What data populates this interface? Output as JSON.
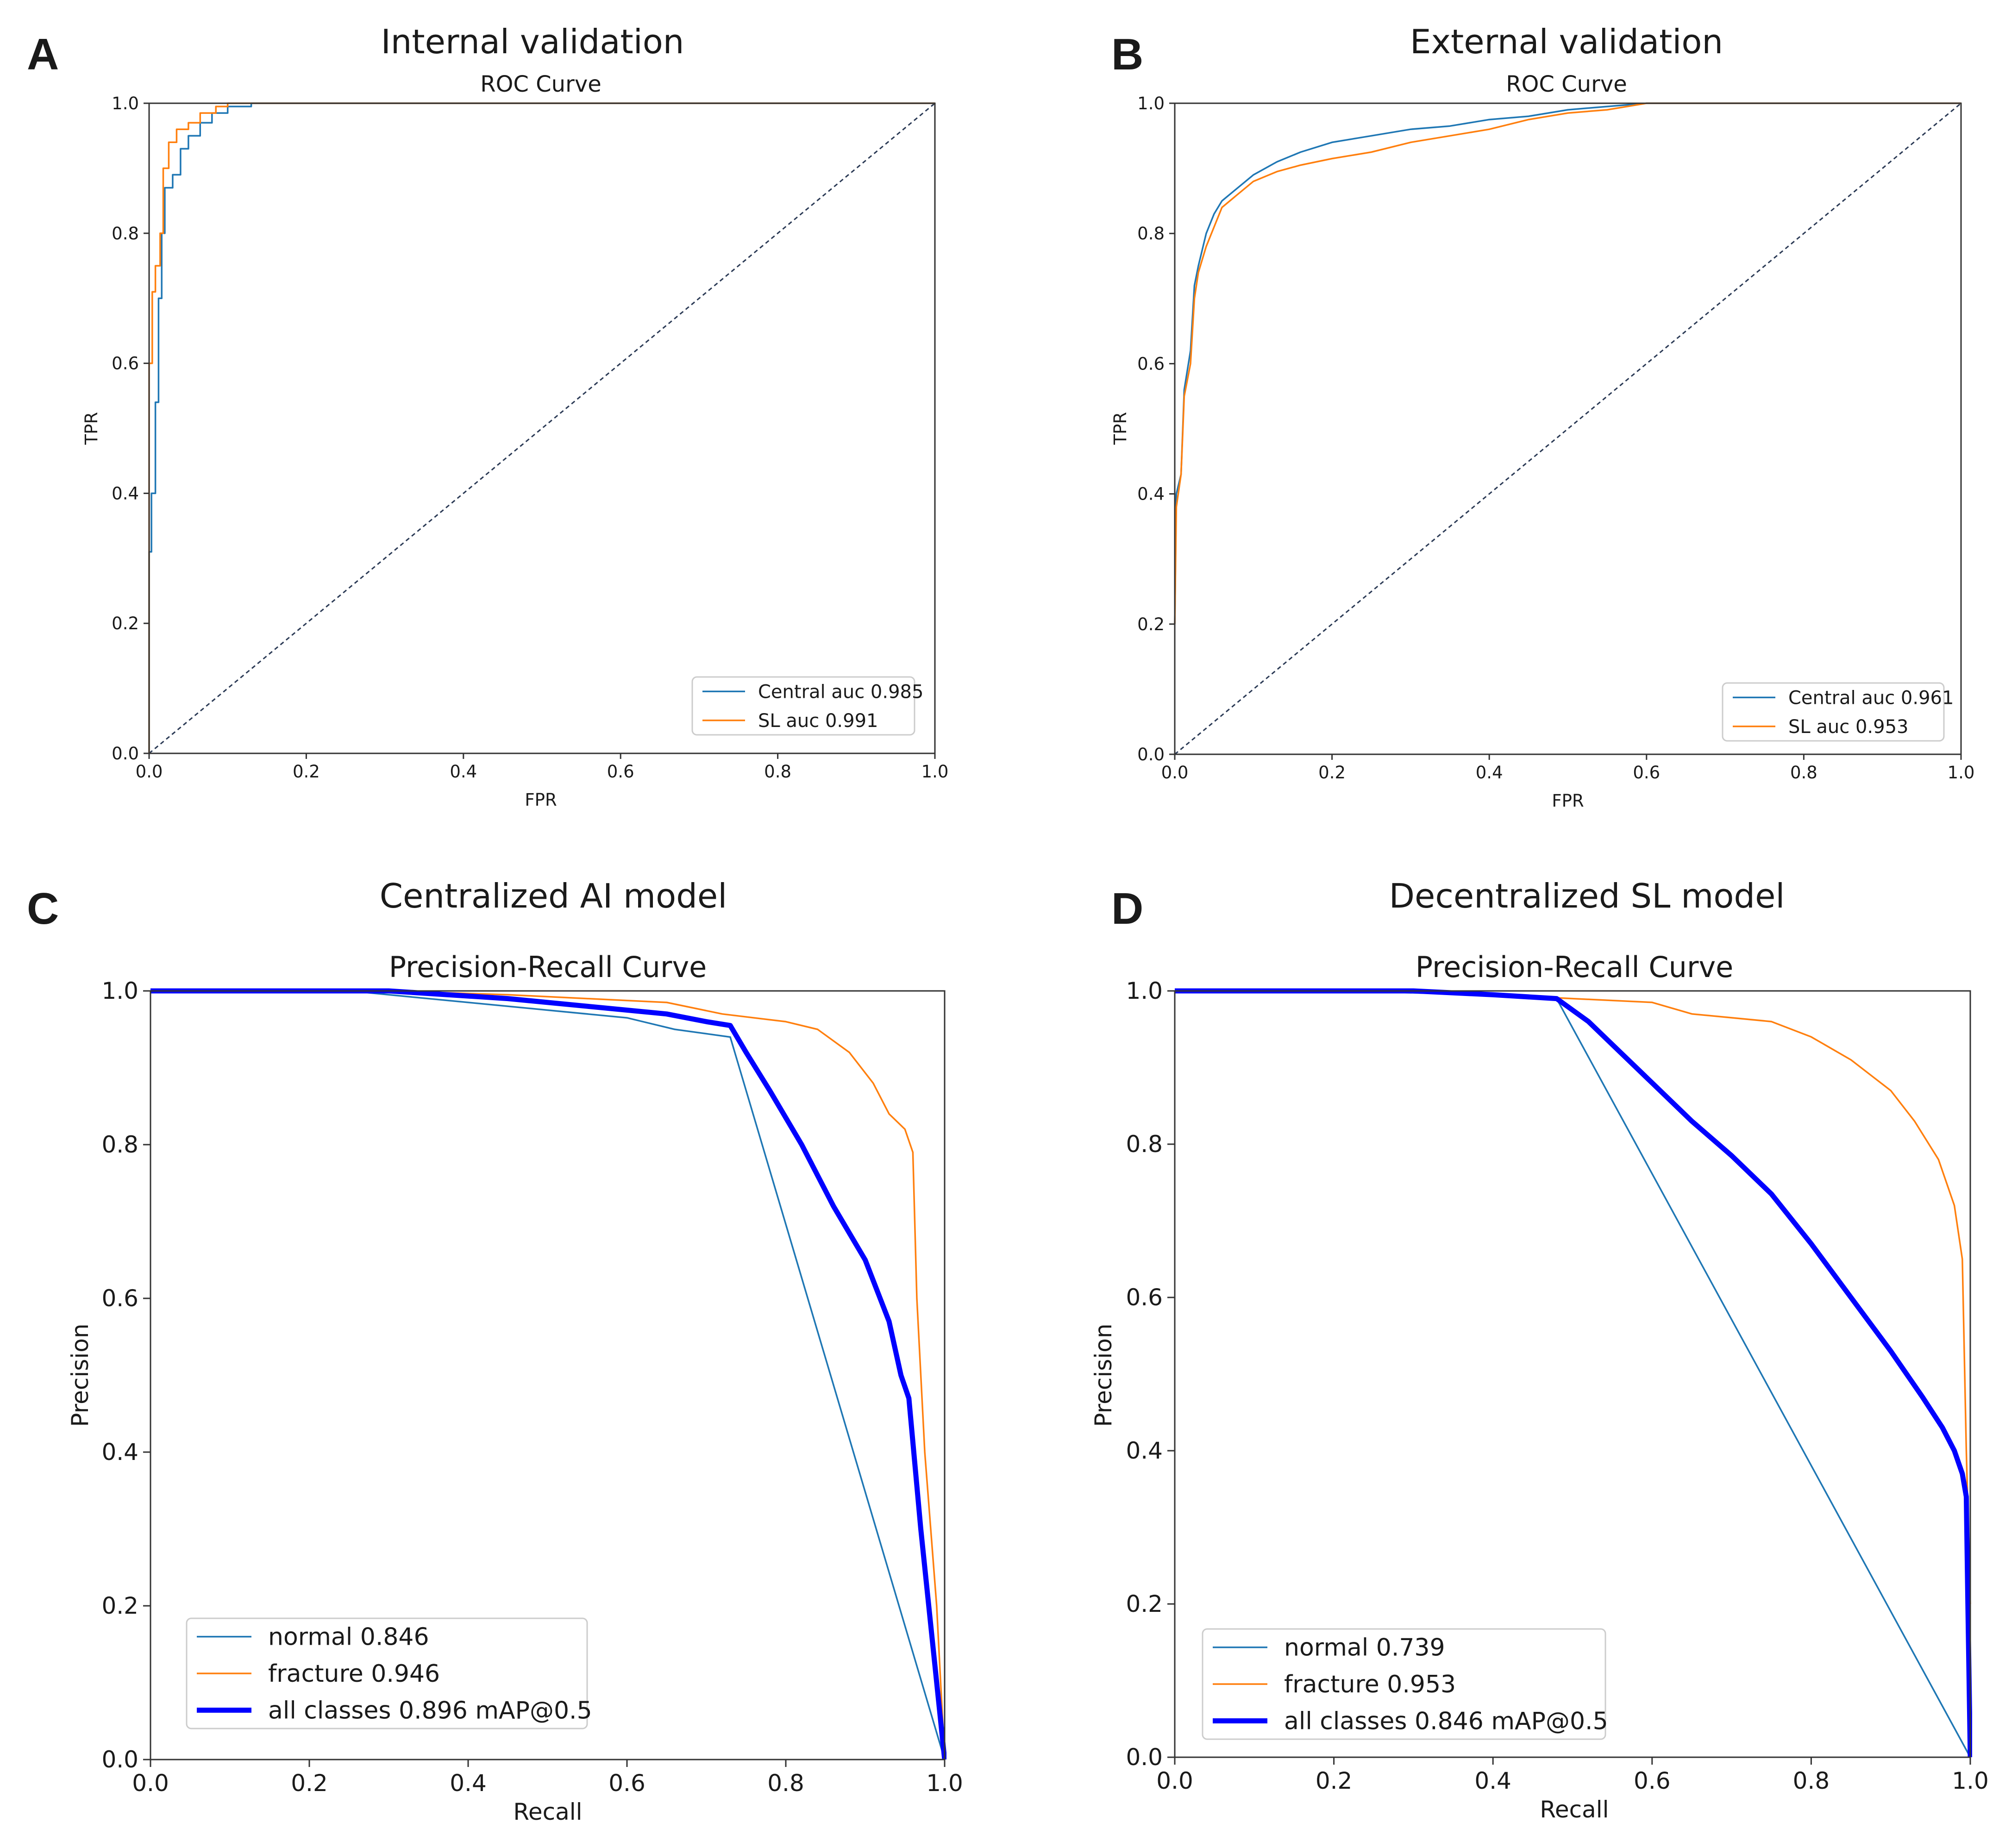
{
  "colors": {
    "blue": "#1f77b4",
    "orange": "#ff7f0e",
    "all_classes": "#0000ff",
    "diagonal": "#2b3a55",
    "axis": "#333333"
  },
  "chart_data": [
    {
      "panel": "A",
      "type": "line",
      "suptitle": "Internal validation",
      "title": "ROC Curve",
      "xlabel": "FPR",
      "ylabel": "TPR",
      "xlim": [
        0,
        1
      ],
      "ylim": [
        0,
        1
      ],
      "xticks": [
        "0.0",
        "0.2",
        "0.4",
        "0.6",
        "0.8",
        "1.0"
      ],
      "yticks": [
        "0.0",
        "0.2",
        "0.4",
        "0.6",
        "0.8",
        "1.0"
      ],
      "legend_position": "lower-right",
      "grid": false,
      "diagonal": true,
      "series": [
        {
          "name": "Central auc 0.985",
          "color": "#1f77b4",
          "width": 1,
          "points": [
            [
              0,
              0
            ],
            [
              0,
              0.31
            ],
            [
              0.003,
              0.31
            ],
            [
              0.003,
              0.4
            ],
            [
              0.008,
              0.4
            ],
            [
              0.008,
              0.54
            ],
            [
              0.012,
              0.54
            ],
            [
              0.012,
              0.7
            ],
            [
              0.016,
              0.7
            ],
            [
              0.016,
              0.8
            ],
            [
              0.02,
              0.8
            ],
            [
              0.02,
              0.87
            ],
            [
              0.03,
              0.87
            ],
            [
              0.03,
              0.89
            ],
            [
              0.04,
              0.89
            ],
            [
              0.04,
              0.93
            ],
            [
              0.05,
              0.93
            ],
            [
              0.05,
              0.95
            ],
            [
              0.065,
              0.95
            ],
            [
              0.065,
              0.97
            ],
            [
              0.08,
              0.97
            ],
            [
              0.08,
              0.985
            ],
            [
              0.1,
              0.985
            ],
            [
              0.1,
              0.995
            ],
            [
              0.13,
              0.995
            ],
            [
              0.13,
              1.0
            ],
            [
              1.0,
              1.0
            ]
          ]
        },
        {
          "name": "SL auc 0.991",
          "color": "#ff7f0e",
          "width": 1,
          "points": [
            [
              0,
              0
            ],
            [
              0,
              0.6
            ],
            [
              0.004,
              0.6
            ],
            [
              0.004,
              0.71
            ],
            [
              0.008,
              0.71
            ],
            [
              0.008,
              0.75
            ],
            [
              0.014,
              0.75
            ],
            [
              0.014,
              0.8
            ],
            [
              0.018,
              0.8
            ],
            [
              0.018,
              0.9
            ],
            [
              0.025,
              0.9
            ],
            [
              0.025,
              0.94
            ],
            [
              0.035,
              0.94
            ],
            [
              0.035,
              0.96
            ],
            [
              0.05,
              0.96
            ],
            [
              0.05,
              0.97
            ],
            [
              0.065,
              0.97
            ],
            [
              0.065,
              0.985
            ],
            [
              0.085,
              0.985
            ],
            [
              0.085,
              0.995
            ],
            [
              0.1,
              0.995
            ],
            [
              0.1,
              1.0
            ],
            [
              1.0,
              1.0
            ]
          ]
        }
      ]
    },
    {
      "panel": "B",
      "type": "line",
      "suptitle": "External validation",
      "title": "ROC Curve",
      "xlabel": "FPR",
      "ylabel": "TPR",
      "xlim": [
        0,
        1
      ],
      "ylim": [
        0,
        1
      ],
      "xticks": [
        "0.0",
        "0.2",
        "0.4",
        "0.6",
        "0.8",
        "1.0"
      ],
      "yticks": [
        "0.0",
        "0.2",
        "0.4",
        "0.6",
        "0.8",
        "1.0"
      ],
      "legend_position": "lower-right",
      "grid": false,
      "diagonal": true,
      "series": [
        {
          "name": "Central auc 0.961",
          "color": "#1f77b4",
          "width": 1,
          "points": [
            [
              0,
              0.2
            ],
            [
              0.002,
              0.4
            ],
            [
              0.008,
              0.43
            ],
            [
              0.012,
              0.56
            ],
            [
              0.02,
              0.62
            ],
            [
              0.025,
              0.72
            ],
            [
              0.03,
              0.75
            ],
            [
              0.04,
              0.8
            ],
            [
              0.05,
              0.83
            ],
            [
              0.06,
              0.85
            ],
            [
              0.08,
              0.87
            ],
            [
              0.1,
              0.89
            ],
            [
              0.13,
              0.91
            ],
            [
              0.16,
              0.925
            ],
            [
              0.2,
              0.94
            ],
            [
              0.25,
              0.95
            ],
            [
              0.3,
              0.96
            ],
            [
              0.35,
              0.965
            ],
            [
              0.4,
              0.975
            ],
            [
              0.45,
              0.98
            ],
            [
              0.5,
              0.99
            ],
            [
              0.55,
              0.995
            ],
            [
              0.6,
              1.0
            ],
            [
              1.0,
              1.0
            ]
          ]
        },
        {
          "name": "SL auc 0.953",
          "color": "#ff7f0e",
          "width": 1,
          "points": [
            [
              0,
              0.2
            ],
            [
              0.002,
              0.38
            ],
            [
              0.008,
              0.43
            ],
            [
              0.012,
              0.55
            ],
            [
              0.02,
              0.6
            ],
            [
              0.025,
              0.7
            ],
            [
              0.03,
              0.74
            ],
            [
              0.04,
              0.78
            ],
            [
              0.05,
              0.81
            ],
            [
              0.06,
              0.84
            ],
            [
              0.08,
              0.86
            ],
            [
              0.1,
              0.88
            ],
            [
              0.13,
              0.895
            ],
            [
              0.16,
              0.905
            ],
            [
              0.2,
              0.915
            ],
            [
              0.25,
              0.925
            ],
            [
              0.3,
              0.94
            ],
            [
              0.35,
              0.95
            ],
            [
              0.4,
              0.96
            ],
            [
              0.45,
              0.975
            ],
            [
              0.5,
              0.985
            ],
            [
              0.55,
              0.99
            ],
            [
              0.6,
              1.0
            ],
            [
              1.0,
              1.0
            ]
          ]
        }
      ]
    },
    {
      "panel": "C",
      "type": "line",
      "suptitle": "Centralized AI model",
      "title": "Precision-Recall Curve",
      "xlabel": "Recall",
      "ylabel": "Precision",
      "xlim": [
        0,
        1
      ],
      "ylim": [
        0,
        1
      ],
      "xticks": [
        "0.0",
        "0.2",
        "0.4",
        "0.6",
        "0.8",
        "1.0"
      ],
      "yticks": [
        "0.0",
        "0.2",
        "0.4",
        "0.6",
        "0.8",
        "1.0"
      ],
      "legend_position": "lower-left",
      "grid": false,
      "diagonal": false,
      "series": [
        {
          "name": "normal 0.846",
          "color": "#1f77b4",
          "width": 1,
          "points": [
            [
              0,
              1.0
            ],
            [
              0.25,
              1.0
            ],
            [
              0.3,
              0.995
            ],
            [
              0.4,
              0.985
            ],
            [
              0.5,
              0.975
            ],
            [
              0.6,
              0.965
            ],
            [
              0.66,
              0.95
            ],
            [
              0.73,
              0.94
            ],
            [
              1.0,
              0.0
            ]
          ]
        },
        {
          "name": "fracture 0.946",
          "color": "#ff7f0e",
          "width": 1,
          "points": [
            [
              0,
              1.0
            ],
            [
              0.3,
              1.0
            ],
            [
              0.45,
              0.995
            ],
            [
              0.55,
              0.99
            ],
            [
              0.65,
              0.985
            ],
            [
              0.72,
              0.97
            ],
            [
              0.8,
              0.96
            ],
            [
              0.84,
              0.95
            ],
            [
              0.88,
              0.92
            ],
            [
              0.91,
              0.88
            ],
            [
              0.93,
              0.84
            ],
            [
              0.95,
              0.82
            ],
            [
              0.96,
              0.79
            ],
            [
              0.965,
              0.6
            ],
            [
              0.975,
              0.4
            ],
            [
              0.99,
              0.2
            ],
            [
              1.0,
              0.0
            ]
          ]
        },
        {
          "name": "all classes 0.896 mAP@0.5",
          "color": "#0000ff",
          "width": 3,
          "points": [
            [
              0,
              1.0
            ],
            [
              0.3,
              1.0
            ],
            [
              0.45,
              0.99
            ],
            [
              0.55,
              0.98
            ],
            [
              0.65,
              0.97
            ],
            [
              0.7,
              0.96
            ],
            [
              0.73,
              0.955
            ],
            [
              0.75,
              0.92
            ],
            [
              0.78,
              0.87
            ],
            [
              0.82,
              0.8
            ],
            [
              0.86,
              0.72
            ],
            [
              0.9,
              0.65
            ],
            [
              0.93,
              0.57
            ],
            [
              0.945,
              0.5
            ],
            [
              0.955,
              0.47
            ],
            [
              0.97,
              0.3
            ],
            [
              0.985,
              0.15
            ],
            [
              1.0,
              0.0
            ]
          ]
        }
      ]
    },
    {
      "panel": "D",
      "type": "line",
      "suptitle": "Decentralized SL model",
      "title": "Precision-Recall Curve",
      "xlabel": "Recall",
      "ylabel": "Precision",
      "xlim": [
        0,
        1
      ],
      "ylim": [
        0,
        1
      ],
      "xticks": [
        "0.0",
        "0.2",
        "0.4",
        "0.6",
        "0.8",
        "1.0"
      ],
      "yticks": [
        "0.0",
        "0.2",
        "0.4",
        "0.6",
        "0.8",
        "1.0"
      ],
      "legend_position": "lower-left",
      "grid": false,
      "diagonal": false,
      "series": [
        {
          "name": "normal 0.739",
          "color": "#1f77b4",
          "width": 1,
          "points": [
            [
              0,
              1.0
            ],
            [
              0.2,
              1.0
            ],
            [
              0.4,
              0.995
            ],
            [
              0.48,
              0.99
            ],
            [
              1.0,
              0.0
            ]
          ]
        },
        {
          "name": "fracture 0.953",
          "color": "#ff7f0e",
          "width": 1,
          "points": [
            [
              0,
              1.0
            ],
            [
              0.3,
              1.0
            ],
            [
              0.5,
              0.99
            ],
            [
              0.6,
              0.985
            ],
            [
              0.65,
              0.97
            ],
            [
              0.75,
              0.96
            ],
            [
              0.8,
              0.94
            ],
            [
              0.85,
              0.91
            ],
            [
              0.9,
              0.87
            ],
            [
              0.93,
              0.83
            ],
            [
              0.96,
              0.78
            ],
            [
              0.98,
              0.72
            ],
            [
              0.99,
              0.65
            ],
            [
              0.995,
              0.4
            ],
            [
              1.0,
              0.2
            ]
          ]
        },
        {
          "name": "all classes 0.846 mAP@0.5",
          "color": "#0000ff",
          "width": 3,
          "points": [
            [
              0,
              1.0
            ],
            [
              0.3,
              1.0
            ],
            [
              0.4,
              0.995
            ],
            [
              0.48,
              0.99
            ],
            [
              0.52,
              0.96
            ],
            [
              0.56,
              0.92
            ],
            [
              0.6,
              0.88
            ],
            [
              0.65,
              0.83
            ],
            [
              0.7,
              0.785
            ],
            [
              0.75,
              0.735
            ],
            [
              0.8,
              0.67
            ],
            [
              0.85,
              0.6
            ],
            [
              0.9,
              0.53
            ],
            [
              0.94,
              0.47
            ],
            [
              0.965,
              0.43
            ],
            [
              0.98,
              0.4
            ],
            [
              0.99,
              0.37
            ],
            [
              0.995,
              0.34
            ],
            [
              0.997,
              0.2
            ],
            [
              1.0,
              0.0
            ]
          ]
        }
      ]
    }
  ]
}
